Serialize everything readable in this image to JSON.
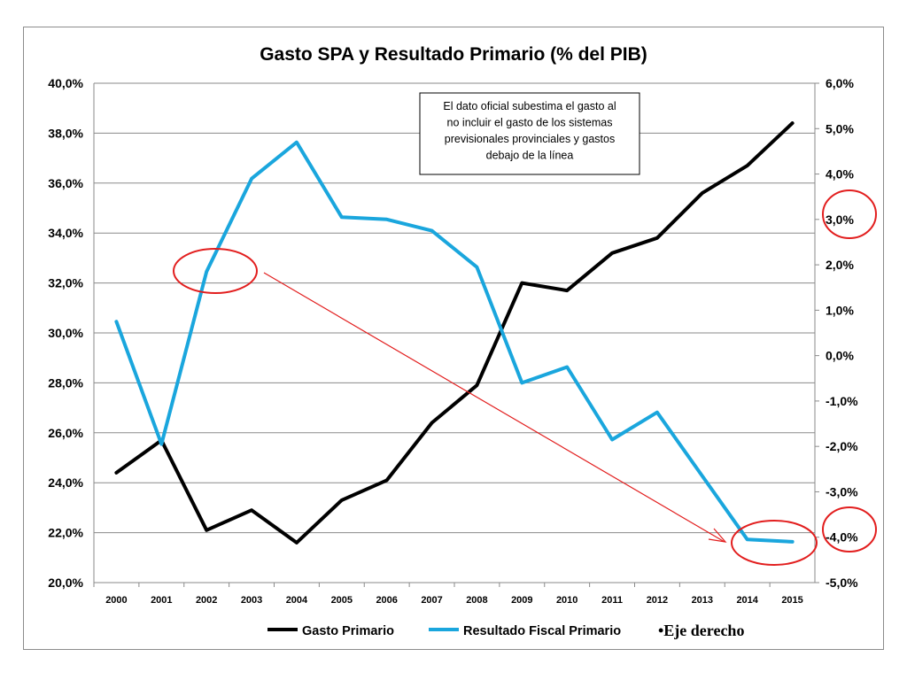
{
  "chart_data": {
    "type": "line",
    "title": "Gasto SPA y Resultado Primario (% del PIB)",
    "x": [
      "2000",
      "2001",
      "2002",
      "2003",
      "2004",
      "2005",
      "2006",
      "2007",
      "2008",
      "2009",
      "2010",
      "2011",
      "2012",
      "2013",
      "2014",
      "2015"
    ],
    "y_left": {
      "ylim": [
        20,
        40
      ],
      "step": 2,
      "ticks": [
        "20,0%",
        "22,0%",
        "24,0%",
        "26,0%",
        "28,0%",
        "30,0%",
        "32,0%",
        "34,0%",
        "36,0%",
        "38,0%",
        "40,0%"
      ]
    },
    "y_right": {
      "ylim": [
        -5,
        6
      ],
      "step": 1,
      "ticks": [
        "-5,0%",
        "-4,0%",
        "-3,0%",
        "-2,0%",
        "-1,0%",
        "0,0%",
        "1,0%",
        "2,0%",
        "3,0%",
        "4,0%",
        "5,0%",
        "6,0%"
      ]
    },
    "grid": true,
    "legend_position": "bottom",
    "series": [
      {
        "name": "Gasto Primario",
        "axis": "left",
        "color": "#000000",
        "values": [
          24.4,
          25.7,
          22.1,
          22.9,
          21.6,
          23.3,
          24.1,
          26.4,
          27.9,
          32.0,
          31.7,
          33.2,
          33.8,
          35.6,
          36.7,
          38.4
        ]
      },
      {
        "name": "Resultado Fiscal Primario",
        "axis": "right",
        "color": "#1aa6dd",
        "values": [
          0.75,
          -1.95,
          1.85,
          3.9,
          4.7,
          3.05,
          3.0,
          2.75,
          1.95,
          -0.6,
          -0.25,
          -1.85,
          -1.25,
          -2.65,
          -4.05,
          -4.1
        ]
      }
    ],
    "annotation_box": "El dato oficial subestima el gasto  al no incluir el gasto de los sistemas previsionales provinciales y gastos debajo de la línea",
    "annotation_lines": [
      "El dato oficial subestima el gasto  al",
      "no incluir el gasto de los sistemas",
      "previsionales provinciales y gastos",
      "debajo de la línea"
    ],
    "legend_note": "•Eje derecho",
    "highlight_color": "#e21e1e"
  }
}
